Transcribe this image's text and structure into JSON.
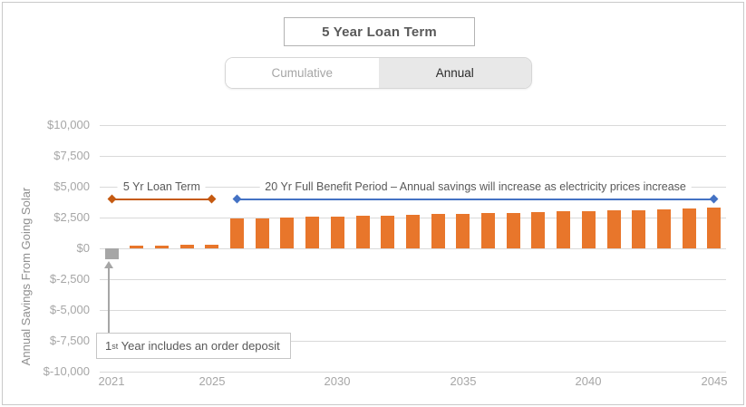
{
  "header": {
    "title": "5 Year Loan Term"
  },
  "toggle": {
    "options": [
      {
        "label": "Cumulative",
        "active": false
      },
      {
        "label": "Annual",
        "active": true
      }
    ]
  },
  "colors": {
    "bar_orange": "#e8762b",
    "bar_gray": "#a6a6a6",
    "loan_line": "#c55a11",
    "benefit_line": "#4472c4",
    "gridline": "#d9d9d9",
    "axis_text": "#a6a6a6",
    "annotation_text": "#595959"
  },
  "chart_data": {
    "type": "bar",
    "title": "5 Year Loan Term",
    "xlabel": "",
    "ylabel": "Annual Savings From Going Solar",
    "ylim": [
      -10000,
      10000
    ],
    "y_tick_step": 2500,
    "y_tick_labels": [
      "$10,000",
      "$7,500",
      "$5,000",
      "$2,500",
      "$0",
      "$-2,500",
      "$-5,000",
      "$-7,500",
      "$-10,000"
    ],
    "y_tick_values": [
      10000,
      7500,
      5000,
      2500,
      0,
      -2500,
      -5000,
      -7500,
      -10000
    ],
    "x_tick_labels": [
      "2021",
      "2025",
      "2030",
      "2035",
      "2040",
      "2045"
    ],
    "x_tick_years": [
      2021,
      2025,
      2030,
      2035,
      2040,
      2045
    ],
    "grid": true,
    "legend": false,
    "years": [
      2021,
      2022,
      2023,
      2024,
      2025,
      2026,
      2027,
      2028,
      2029,
      2030,
      2031,
      2032,
      2033,
      2034,
      2035,
      2036,
      2037,
      2038,
      2039,
      2040,
      2041,
      2042,
      2043,
      2044,
      2045
    ],
    "values": [
      -900,
      200,
      240,
      270,
      300,
      2410,
      2460,
      2500,
      2550,
      2590,
      2640,
      2680,
      2730,
      2770,
      2820,
      2860,
      2910,
      2950,
      3000,
      3040,
      3090,
      3130,
      3180,
      3220,
      3290
    ],
    "bar_color": "#e8762b",
    "first_bar_color": "#a6a6a6",
    "annotations": {
      "loan_term": {
        "label": "5 Yr Loan Term",
        "start_year": 2021,
        "end_year": 2025,
        "line_level": 4000,
        "label_level": 5000,
        "color": "#c55a11"
      },
      "benefit_period": {
        "label": "20 Yr Full Benefit Period – Annual savings will increase as electricity prices increase",
        "start_year": 2026,
        "end_year": 2045,
        "line_level": 4000,
        "label_level": 5000,
        "color": "#4472c4"
      },
      "deposit_note": {
        "prefix": "1",
        "sup": "st",
        "text": " Year includes an order deposit",
        "target_year": 2021
      }
    }
  }
}
